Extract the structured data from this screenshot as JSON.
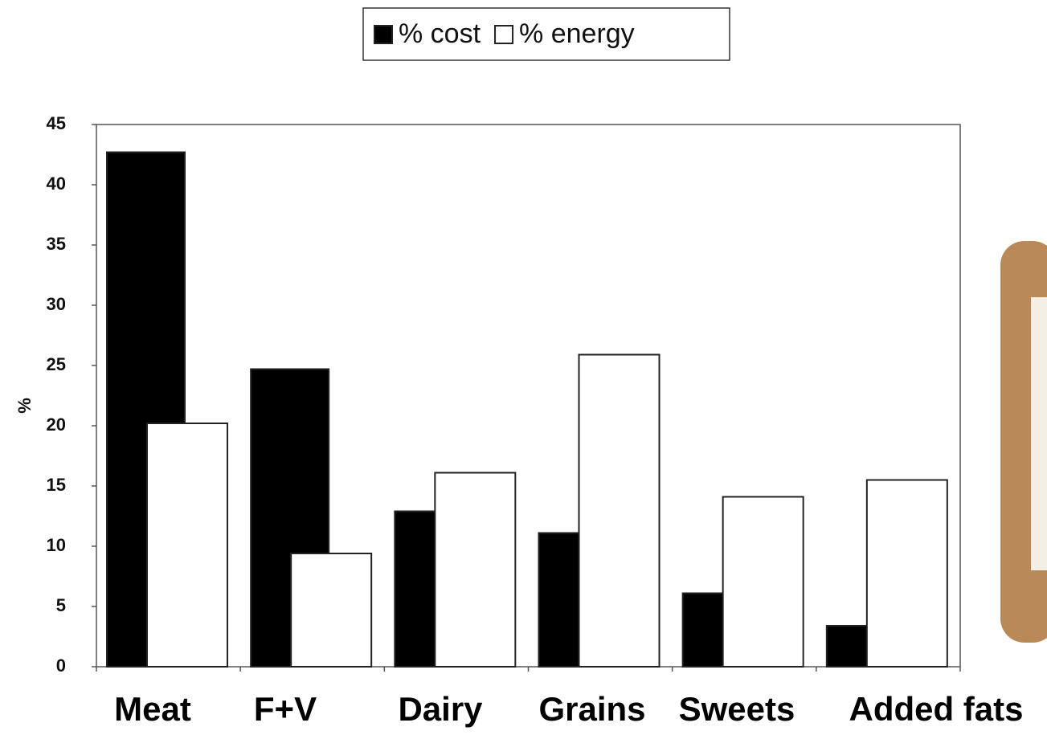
{
  "chart_data": {
    "type": "bar",
    "y_label": "%",
    "categories": [
      "Meat",
      "F+V",
      "Dairy",
      "Grains",
      "Sweets",
      "Added fats"
    ],
    "series": [
      {
        "name": "% cost",
        "color": "#000000",
        "values": [
          42.7,
          24.7,
          12.9,
          11.1,
          6.1,
          3.4
        ]
      },
      {
        "name": "% energy",
        "color": "#ffffff",
        "values": [
          20.2,
          9.4,
          16.1,
          25.9,
          14.1,
          15.5
        ]
      }
    ],
    "ylim": [
      0,
      45
    ],
    "yticks": [
      0,
      5,
      10,
      15,
      20,
      25,
      30,
      35,
      40,
      45
    ],
    "legend": "top"
  }
}
